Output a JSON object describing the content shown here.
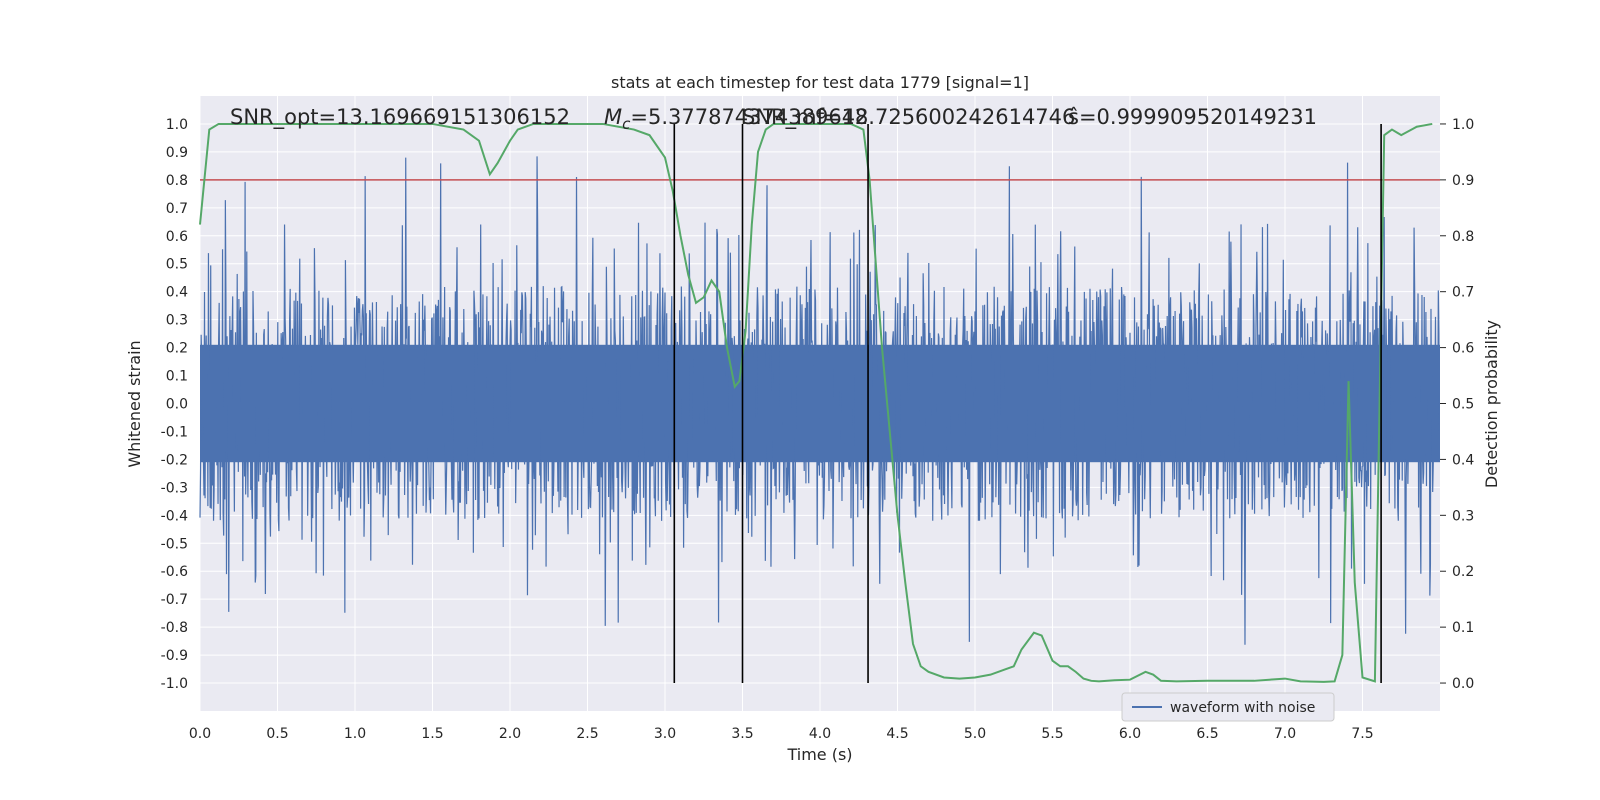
{
  "chart_data": {
    "type": "line",
    "title": "stats at each timestep for test data 1779 [signal=1]",
    "xlabel": "Time (s)",
    "ylabel": "Whitened strain",
    "y2label": "Detection probability",
    "xlim": [
      0.0,
      8.0
    ],
    "ylim": [
      -1.1,
      1.1
    ],
    "y2lim": [
      -0.05,
      1.05
    ],
    "x_ticks": [
      "0.0",
      "0.5",
      "1.0",
      "1.5",
      "2.0",
      "2.5",
      "3.0",
      "3.5",
      "4.0",
      "4.5",
      "5.0",
      "5.5",
      "6.0",
      "6.5",
      "7.0",
      "7.5"
    ],
    "y_ticks": [
      "-1.0",
      "-0.9",
      "-0.8",
      "-0.7",
      "-0.6",
      "-0.5",
      "-0.4",
      "-0.3",
      "-0.2",
      "-0.1",
      "0.0",
      "0.1",
      "0.2",
      "0.3",
      "0.4",
      "0.5",
      "0.6",
      "0.7",
      "0.8",
      "0.9",
      "1.0"
    ],
    "y2_ticks": [
      "0.0",
      "0.1",
      "0.2",
      "0.3",
      "0.4",
      "0.5",
      "0.6",
      "0.7",
      "0.8",
      "0.9",
      "1.0"
    ],
    "grid": true,
    "legend": {
      "placement": "lower-right",
      "entries": [
        "waveform with noise"
      ]
    },
    "colors": {
      "background": "#eaeaf2",
      "grid": "#ffffff",
      "waveform": "#4c72b0",
      "probability": "#55a868",
      "threshold": "#c44e52",
      "markers": "#000000"
    },
    "annotations": [
      {
        "text": "SNR_opt=13.169669151306152"
      },
      {
        "text_main": "M",
        "text_sub": "c",
        "text_rest": "=5.377874374389648"
      },
      {
        "text": "SNR_mf=12.725600242614746"
      },
      {
        "text": "ŝ=0.999909520149231"
      }
    ],
    "threshold_probability": 0.9,
    "vertical_markers_s": [
      3.06,
      3.5,
      4.31,
      7.62
    ],
    "series": [
      {
        "name": "waveform with noise",
        "axis": "left",
        "description_envelope_peaks": [
          0.8,
          0.97,
          0.84,
          0.75
        ]
      },
      {
        "axis": "right",
        "x": [
          0.0,
          0.06,
          0.12,
          0.5,
          1.0,
          1.5,
          1.7,
          1.8,
          1.87,
          1.92,
          2.0,
          2.05,
          2.15,
          2.3,
          2.6,
          2.8,
          2.9,
          3.0,
          3.05,
          3.1,
          3.15,
          3.2,
          3.25,
          3.3,
          3.35,
          3.4,
          3.45,
          3.48,
          3.52,
          3.56,
          3.6,
          3.65,
          3.7,
          4.0,
          4.2,
          4.28,
          4.32,
          4.36,
          4.4,
          4.45,
          4.5,
          4.55,
          4.6,
          4.65,
          4.7,
          4.8,
          4.9,
          5.0,
          5.1,
          5.2,
          5.25,
          5.3,
          5.38,
          5.43,
          5.5,
          5.55,
          5.6,
          5.65,
          5.7,
          5.75,
          5.8,
          5.9,
          6.0,
          6.1,
          6.15,
          6.2,
          6.3,
          6.5,
          6.8,
          7.0,
          7.1,
          7.25,
          7.32,
          7.37,
          7.41,
          7.45,
          7.5,
          7.58,
          7.61,
          7.64,
          7.69,
          7.75,
          7.85,
          7.95
        ],
        "values": [
          0.82,
          0.99,
          1.0,
          1.0,
          1.0,
          1.0,
          0.99,
          0.97,
          0.91,
          0.93,
          0.97,
          0.99,
          1.0,
          1.0,
          1.0,
          0.99,
          0.98,
          0.94,
          0.88,
          0.8,
          0.73,
          0.68,
          0.69,
          0.72,
          0.7,
          0.6,
          0.53,
          0.54,
          0.63,
          0.82,
          0.95,
          0.99,
          1.0,
          1.0,
          1.0,
          0.99,
          0.9,
          0.75,
          0.6,
          0.45,
          0.3,
          0.18,
          0.07,
          0.03,
          0.02,
          0.01,
          0.008,
          0.01,
          0.015,
          0.025,
          0.03,
          0.06,
          0.09,
          0.085,
          0.04,
          0.03,
          0.03,
          0.02,
          0.008,
          0.004,
          0.003,
          0.005,
          0.006,
          0.02,
          0.015,
          0.004,
          0.003,
          0.004,
          0.004,
          0.008,
          0.003,
          0.002,
          0.003,
          0.05,
          0.54,
          0.18,
          0.01,
          0.003,
          0.5,
          0.98,
          0.99,
          0.98,
          0.995,
          1.0
        ]
      }
    ]
  }
}
